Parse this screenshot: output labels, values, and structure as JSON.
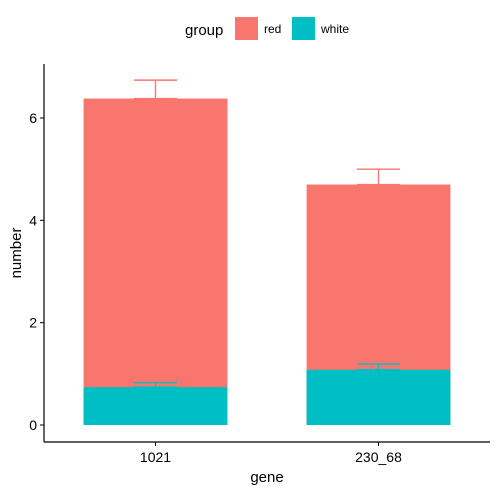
{
  "chart_data": {
    "type": "bar",
    "stacked": true,
    "xlabel": "gene",
    "ylabel": "number",
    "categories": [
      "1021",
      "230_68"
    ],
    "ylim": [
      0,
      7
    ],
    "yticks": [
      0,
      2,
      4,
      6
    ],
    "grid": false,
    "legend": {
      "title": "group",
      "position": "top"
    },
    "series": [
      {
        "name": "red",
        "color": "#F8766D",
        "values": [
          6.38,
          4.7
        ],
        "error_upper": [
          6.74,
          5.0
        ]
      },
      {
        "name": "white",
        "color": "#00BFC4",
        "values": [
          0.74,
          1.08
        ],
        "error_upper": [
          0.83,
          1.19
        ]
      }
    ]
  }
}
